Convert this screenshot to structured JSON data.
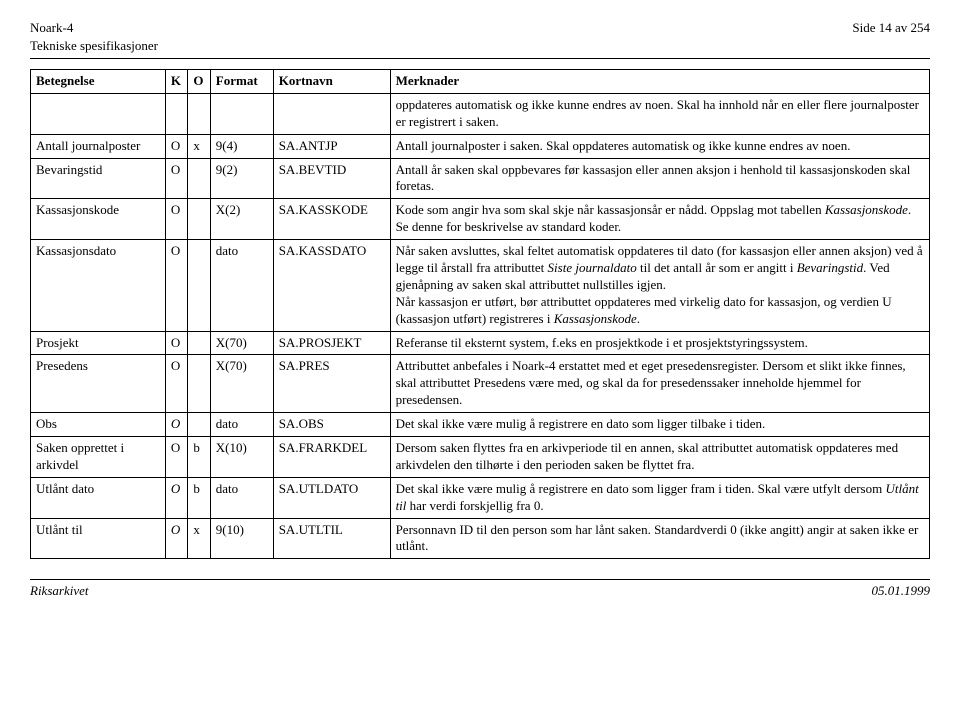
{
  "header": {
    "left1": "Noark-4",
    "right": "Side 14 av 254",
    "left2": "Tekniske spesifikasjoner"
  },
  "columns": {
    "betegnelse": "Betegnelse",
    "k": "K",
    "o": "O",
    "format": "Format",
    "kortnavn": "Kortnavn",
    "merknader": "Merknader"
  },
  "rows": [
    {
      "bet": "",
      "k": "",
      "o": "",
      "fmt": "",
      "kort": "",
      "merk": "oppdateres automatisk og ikke kunne endres av noen. Skal ha innhold når en eller flere journalposter er registrert i saken."
    },
    {
      "bet": "Antall journalposter",
      "k": "O",
      "o": "x",
      "fmt": "9(4)",
      "kort": "SA.ANTJP",
      "merk": "Antall journalposter i saken. Skal oppdateres automatisk og ikke kunne endres av noen."
    },
    {
      "bet": "Bevaringstid",
      "k": "O",
      "o": "",
      "fmt": "9(2)",
      "kort": "SA.BEVTID",
      "merk": "Antall år saken skal oppbevares før kassasjon eller annen aksjon i henhold til kassasjonskoden skal foretas."
    },
    {
      "bet": "Kassasjonskode",
      "k": "O",
      "o": "",
      "fmt": "X(2)",
      "kort": "SA.KASSKODE",
      "merk_html": "Kode som angir hva som skal skje når kassasjonsår er nådd. Oppslag mot tabellen <em>Kassasjonskode</em>. Se denne for beskrivelse av standard koder."
    },
    {
      "bet": "Kassasjonsdato",
      "k": "O",
      "o": "",
      "fmt": "dato",
      "kort": "SA.KASSDATO",
      "merk_html": "Når saken avsluttes, skal feltet automatisk oppdateres til dato (for kassasjon eller annen aksjon) ved å legge til årstall fra attributtet <em>Siste journaldato</em> til det antall år som er angitt i <em>Bevaringstid</em>. Ved gjenåpning av saken skal attributtet nullstilles igjen.<br>Når kassasjon er utført, bør attributtet oppdateres med virkelig dato for kassasjon, og verdien U (kassasjon utført) registreres i <em>Kassasjonskode</em>."
    },
    {
      "bet": "Prosjekt",
      "k": "O",
      "o": "",
      "fmt": "X(70)",
      "kort": "SA.PROSJEKT",
      "merk": "Referanse til eksternt system, f.eks en prosjektkode i et prosjektstyringssystem."
    },
    {
      "bet": "Presedens",
      "k": "O",
      "o": "",
      "fmt": "X(70)",
      "kort": "SA.PRES",
      "merk": "Attributtet anbefales i Noark-4 erstattet med et eget presedensregister. Dersom et slikt ikke finnes, skal attributtet Presedens være med, og skal da for presedenssaker inneholde hjemmel for presedensen."
    },
    {
      "bet": "Obs",
      "k_italic": true,
      "k": "O",
      "o": "",
      "fmt": "dato",
      "kort": "SA.OBS",
      "merk": "Det skal ikke være mulig å registrere en dato som ligger tilbake i tiden."
    },
    {
      "bet": "Saken opprettet i arkivdel",
      "k": "O",
      "o": "b",
      "fmt": "X(10)",
      "kort": "SA.FRARKDEL",
      "merk": "Dersom saken flyttes fra en arkivperiode til en annen, skal attributtet automatisk oppdateres med arkivdelen den tilhørte i den perioden saken be flyttet fra."
    },
    {
      "bet": "Utlånt dato",
      "k_italic": true,
      "k": "O",
      "o": "b",
      "fmt": "dato",
      "kort": "SA.UTLDATO",
      "merk_html": "Det skal ikke være mulig å registrere en dato som ligger fram i tiden. Skal være utfylt dersom <em>Utlånt til</em> har verdi forskjellig fra 0."
    },
    {
      "bet": "Utlånt til",
      "k_italic": true,
      "k": "O",
      "o": "x",
      "fmt": "9(10)",
      "kort": "SA.UTLTIL",
      "merk": "Personnavn ID til den person som har lånt saken. Standardverdi 0 (ikke angitt) angir at saken ikke er utlånt."
    }
  ],
  "footer": {
    "left": "Riksarkivet",
    "right": "05.01.1999"
  }
}
